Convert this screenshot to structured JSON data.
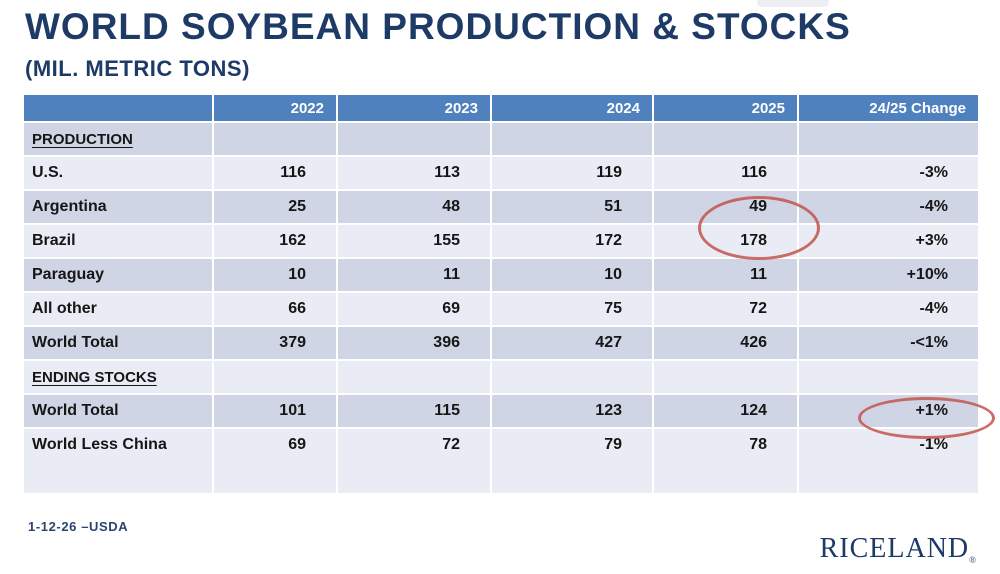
{
  "page": {
    "title": "WORLD SOYBEAN PRODUCTION & STOCKS",
    "subtitle": "(MIL. METRIC TONS)",
    "source_note": "1-12-26 –USDA",
    "brand": "RICELAND",
    "brand_mark": "®"
  },
  "colors": {
    "title_navy": "#1e3a66",
    "header_blue": "#4e81bd",
    "row_dark": "#cfd5e4",
    "row_light": "#e9ecf4",
    "annotation_red": "#c3544e",
    "brand_navy": "#1c3968"
  },
  "annotations": [
    {
      "name": "ellipse-2025-argentina-brazil",
      "around": "2025 values 49 and 178"
    },
    {
      "name": "ellipse-change-world-total-stocks",
      "around": "24/25 Change value +1%"
    }
  ],
  "chart_data": {
    "type": "table",
    "title": "WORLD SOYBEAN PRODUCTION & STOCKS",
    "units": "(MIL. METRIC TONS)",
    "columns": [
      "",
      "2022",
      "2023",
      "2024",
      "2025",
      "24/25 Change"
    ],
    "sections": [
      {
        "header": "PRODUCTION",
        "rows": [
          {
            "label": "U.S.",
            "values": [
              "116",
              "113",
              "119",
              "116",
              "-3%"
            ]
          },
          {
            "label": "Argentina",
            "values": [
              "25",
              "48",
              "51",
              "49",
              "-4%"
            ]
          },
          {
            "label": "Brazil",
            "values": [
              "162",
              "155",
              "172",
              "178",
              "+3%"
            ]
          },
          {
            "label": "Paraguay",
            "values": [
              "10",
              "11",
              "10",
              "11",
              "+10%"
            ]
          },
          {
            "label": "All other",
            "values": [
              "66",
              "69",
              "75",
              "72",
              "-4%"
            ]
          },
          {
            "label": "World Total",
            "values": [
              "379",
              "396",
              "427",
              "426",
              "-<1%"
            ]
          }
        ]
      },
      {
        "header": "ENDING STOCKS",
        "rows": [
          {
            "label": "World Total",
            "values": [
              "101",
              "115",
              "123",
              "124",
              "+1%"
            ]
          },
          {
            "label": "World Less China",
            "values": [
              "69",
              "72",
              "79",
              "78",
              "-1%"
            ]
          }
        ]
      }
    ]
  }
}
